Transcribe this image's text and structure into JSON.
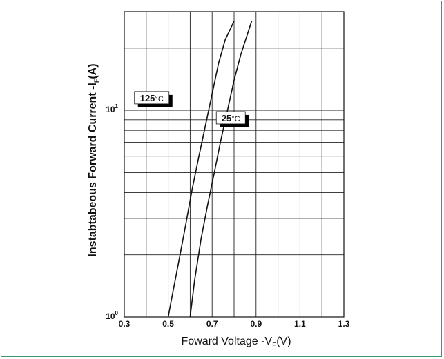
{
  "chart_data": {
    "type": "line",
    "xlabel": {
      "main": "Foward Voltage -V",
      "sub": "F",
      "unit": "(V)"
    },
    "ylabel": {
      "main": "Instabtabeous Forward Current -I",
      "sub": "F",
      "unit": "(A)"
    },
    "xlim": [
      0.3,
      1.3
    ],
    "ylim": [
      1,
      30
    ],
    "yscale": "log",
    "grid": true,
    "x_ticks": [
      "0.3",
      "0.5",
      "0.7",
      "0.9",
      "1.1",
      "1.3"
    ],
    "y_ticks": [
      {
        "base": "10",
        "exp": "0"
      },
      {
        "base": "10",
        "exp": "1"
      }
    ],
    "series": [
      {
        "name": "125",
        "unit": "°C",
        "color": "#111111",
        "x": [
          0.5,
          0.52,
          0.55,
          0.58,
          0.61,
          0.64,
          0.67,
          0.7,
          0.73,
          0.76,
          0.8
        ],
        "y": [
          1.0,
          1.3,
          1.9,
          2.8,
          4.2,
          6.0,
          8.5,
          12.0,
          17.0,
          22.0,
          27.0
        ]
      },
      {
        "name": "25",
        "unit": "°C",
        "color": "#111111",
        "x": [
          0.6,
          0.62,
          0.65,
          0.68,
          0.71,
          0.74,
          0.77,
          0.8,
          0.83,
          0.88
        ],
        "y": [
          1.0,
          1.5,
          2.4,
          3.5,
          5.0,
          7.2,
          10.0,
          14.0,
          18.5,
          27.0
        ]
      }
    ]
  }
}
